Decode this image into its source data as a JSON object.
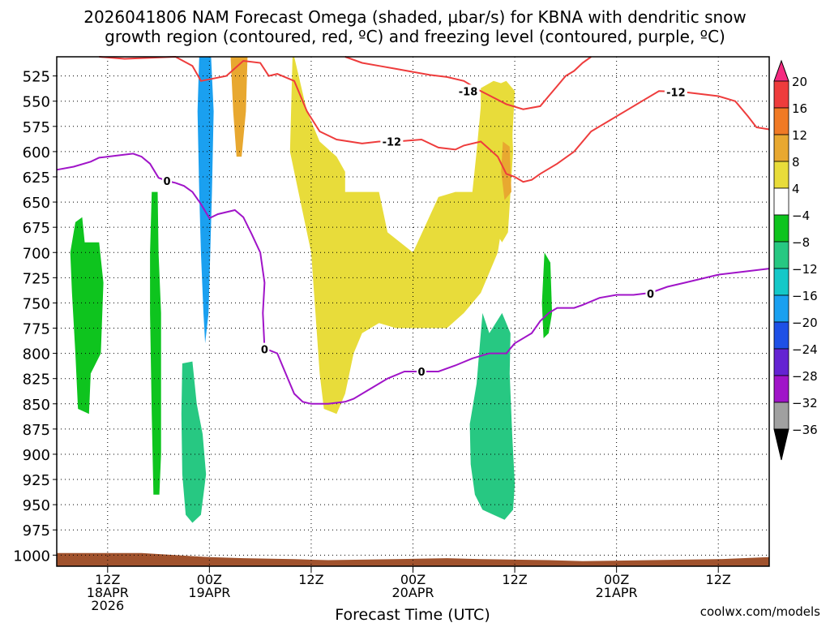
{
  "chart_data": {
    "type": "time-height cross section",
    "title_line1": "2026041806 NAM Forecast Omega (shaded, μbar/s) for KBNA with dendritic snow",
    "title_line2": "growth region (contoured, red, ºC) and freezing level (contoured, purple, ºC)",
    "xlabel": "Forecast Time (UTC)",
    "credit": "coolwx.com/models",
    "y_levels": [
      525,
      550,
      575,
      600,
      625,
      650,
      675,
      700,
      725,
      750,
      775,
      800,
      825,
      850,
      875,
      900,
      925,
      950,
      975,
      1000
    ],
    "y_tick_labels": [
      "525",
      "550",
      "575",
      "600",
      "625",
      "650",
      "675",
      "700",
      "725",
      "750",
      "775",
      "800",
      "825",
      "850",
      "875",
      "900",
      "925",
      "950",
      "975",
      "1000"
    ],
    "y_range_hpa": [
      506,
      1011
    ],
    "x_range_hours": [
      0,
      84
    ],
    "x_ticks": [
      {
        "hour": 6,
        "line1": "12Z",
        "line2": "18APR",
        "line3": "2026"
      },
      {
        "hour": 18,
        "line1": "00Z",
        "line2": "19APR",
        "line3": ""
      },
      {
        "hour": 30,
        "line1": "12Z",
        "line2": "",
        "line3": ""
      },
      {
        "hour": 42,
        "line1": "00Z",
        "line2": "20APR",
        "line3": ""
      },
      {
        "hour": 54,
        "line1": "12Z",
        "line2": "",
        "line3": ""
      },
      {
        "hour": 66,
        "line1": "00Z",
        "line2": "21APR",
        "line3": ""
      },
      {
        "hour": 78,
        "line1": "12Z",
        "line2": "",
        "line3": ""
      }
    ],
    "colorbar": {
      "labels": [
        "20",
        "16",
        "12",
        "8",
        "4",
        "−4",
        "−8",
        "−12",
        "−16",
        "−20",
        "−24",
        "−28",
        "−32",
        "−36"
      ],
      "colors": [
        "#f52a80",
        "#ee3c3c",
        "#f07a25",
        "#e8a830",
        "#e8dc3a",
        "#ffffff",
        "#0ec41e",
        "#27c882",
        "#14c8c8",
        "#1aa0f0",
        "#1e50e6",
        "#6423d2",
        "#a014c8",
        "#a0a0a0",
        "#000000"
      ]
    },
    "shading_regions": [
      {
        "category": "4 to 8",
        "color": "#e8dc3a",
        "approx_hours": [
          28,
          53
        ],
        "approx_hpa": [
          506,
          860
        ]
      },
      {
        "category": "4 to 8",
        "color": "#e8dc3a",
        "approx_hours": [
          49,
          54
        ],
        "approx_hpa": [
          530,
          690
        ]
      },
      {
        "category": "8 to 12",
        "color": "#e8a830",
        "approx_hours": [
          52.5,
          53.5
        ],
        "approx_hpa": [
          590,
          640
        ]
      },
      {
        "category": "4 to 12",
        "color": "#e8a830",
        "approx_hours": [
          20.5,
          22.5
        ],
        "approx_hpa": [
          506,
          600
        ]
      },
      {
        "category": "-4 to -12",
        "color": "#0ec41e",
        "approx_hours": [
          1.5,
          5.5
        ],
        "approx_hpa": [
          665,
          855
        ]
      },
      {
        "category": "-4 to -12",
        "color": "#0ec41e",
        "approx_hours": [
          11,
          13
        ],
        "approx_hpa": [
          640,
          940
        ]
      },
      {
        "category": "-4 to -16",
        "color": "#1aa0f0",
        "approx_hours": [
          17,
          18.5
        ],
        "approx_hpa": [
          506,
          790
        ]
      },
      {
        "category": "-4 to -12",
        "color": "#27c882",
        "approx_hours": [
          14.5,
          17.5
        ],
        "approx_hpa": [
          810,
          970
        ]
      },
      {
        "category": "-4 to -12",
        "color": "#27c882",
        "approx_hours": [
          48.5,
          54
        ],
        "approx_hpa": [
          760,
          965
        ]
      },
      {
        "category": "-4 to -8",
        "color": "#0ec41e",
        "approx_hours": [
          57,
          58.5
        ],
        "approx_hpa": [
          700,
          780
        ]
      }
    ],
    "red_contours": [
      {
        "label": "-18",
        "values_c": -18,
        "label_hour": 48.5,
        "label_hpa": 540
      },
      {
        "label": "-12",
        "values_c": -12,
        "label_hour": 39.5,
        "label_hpa": 590
      },
      {
        "label": "-12",
        "values_c": -12,
        "label_hour": 73,
        "label_hpa": 541
      }
    ],
    "purple_contour": {
      "label": "0",
      "values_c": 0,
      "label_points": [
        {
          "hour": 13,
          "hpa": 629
        },
        {
          "hour": 24.5,
          "hpa": 796
        },
        {
          "hour": 43,
          "hpa": 818
        },
        {
          "hour": 70,
          "hpa": 741
        }
      ]
    }
  }
}
